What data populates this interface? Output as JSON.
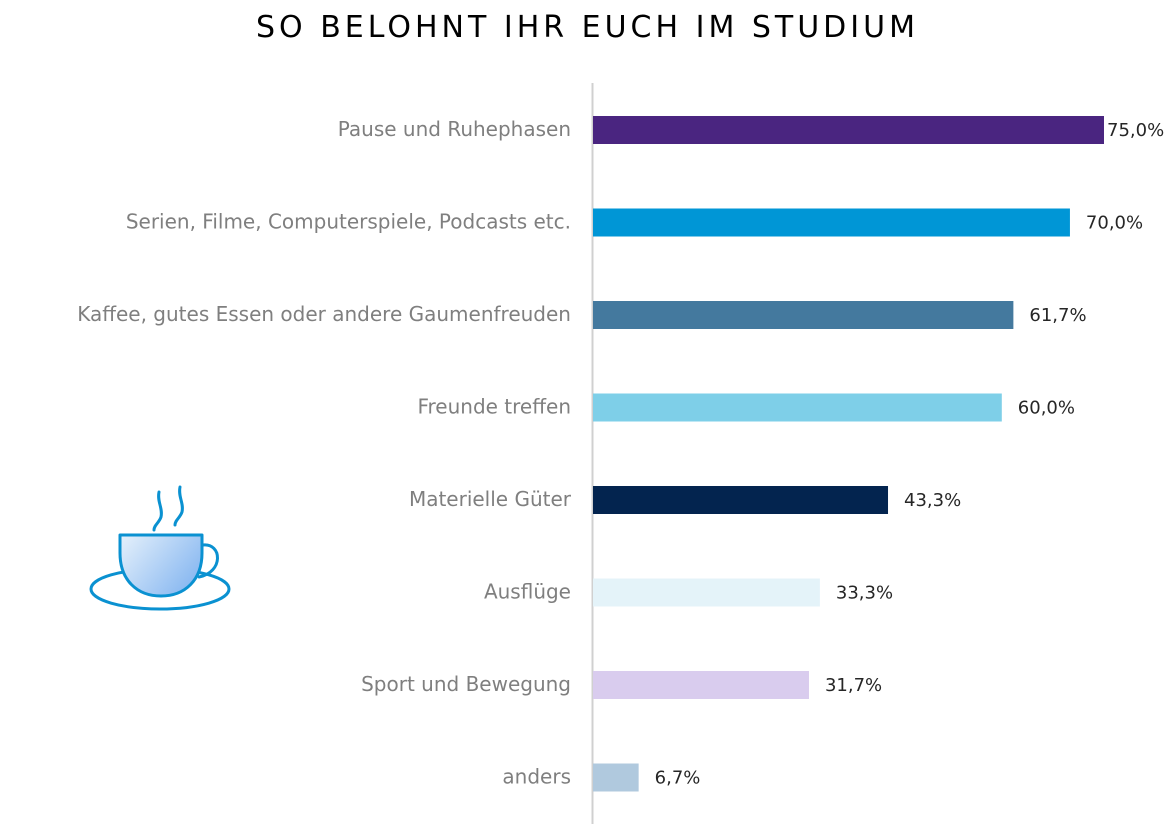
{
  "chart_data": {
    "type": "bar",
    "orientation": "horizontal",
    "title": "SO BELOHNT IHR EUCH IM STUDIUM",
    "xlabel": "",
    "ylabel": "",
    "xlim": [
      0,
      75
    ],
    "grid": false,
    "legend": "none",
    "categories": [
      "Pause und Ruhephasen",
      "Serien, Filme, Computerspiele, Podcasts etc.",
      "Kaffee, gutes Essen oder andere Gaumenfreuden",
      "Freunde treffen",
      "Materielle Güter",
      "Ausflüge",
      "Sport und Bewegung",
      "anders"
    ],
    "values": [
      75.0,
      70.0,
      61.7,
      60.0,
      43.3,
      33.3,
      31.7,
      6.7
    ],
    "value_labels": [
      "75,0%",
      "70,0%",
      "61,7%",
      "60,0%",
      "43,3%",
      "33,3%",
      "31,7%",
      "6,7%"
    ],
    "colors": [
      "#4a2580",
      "#0096d6",
      "#44799e",
      "#7ecfe8",
      "#03244f",
      "#e4f3f9",
      "#d9ccee",
      "#b0c9de"
    ]
  },
  "decoration": {
    "icon": "coffee-cup-icon",
    "icon_color": "#0a91d1"
  }
}
